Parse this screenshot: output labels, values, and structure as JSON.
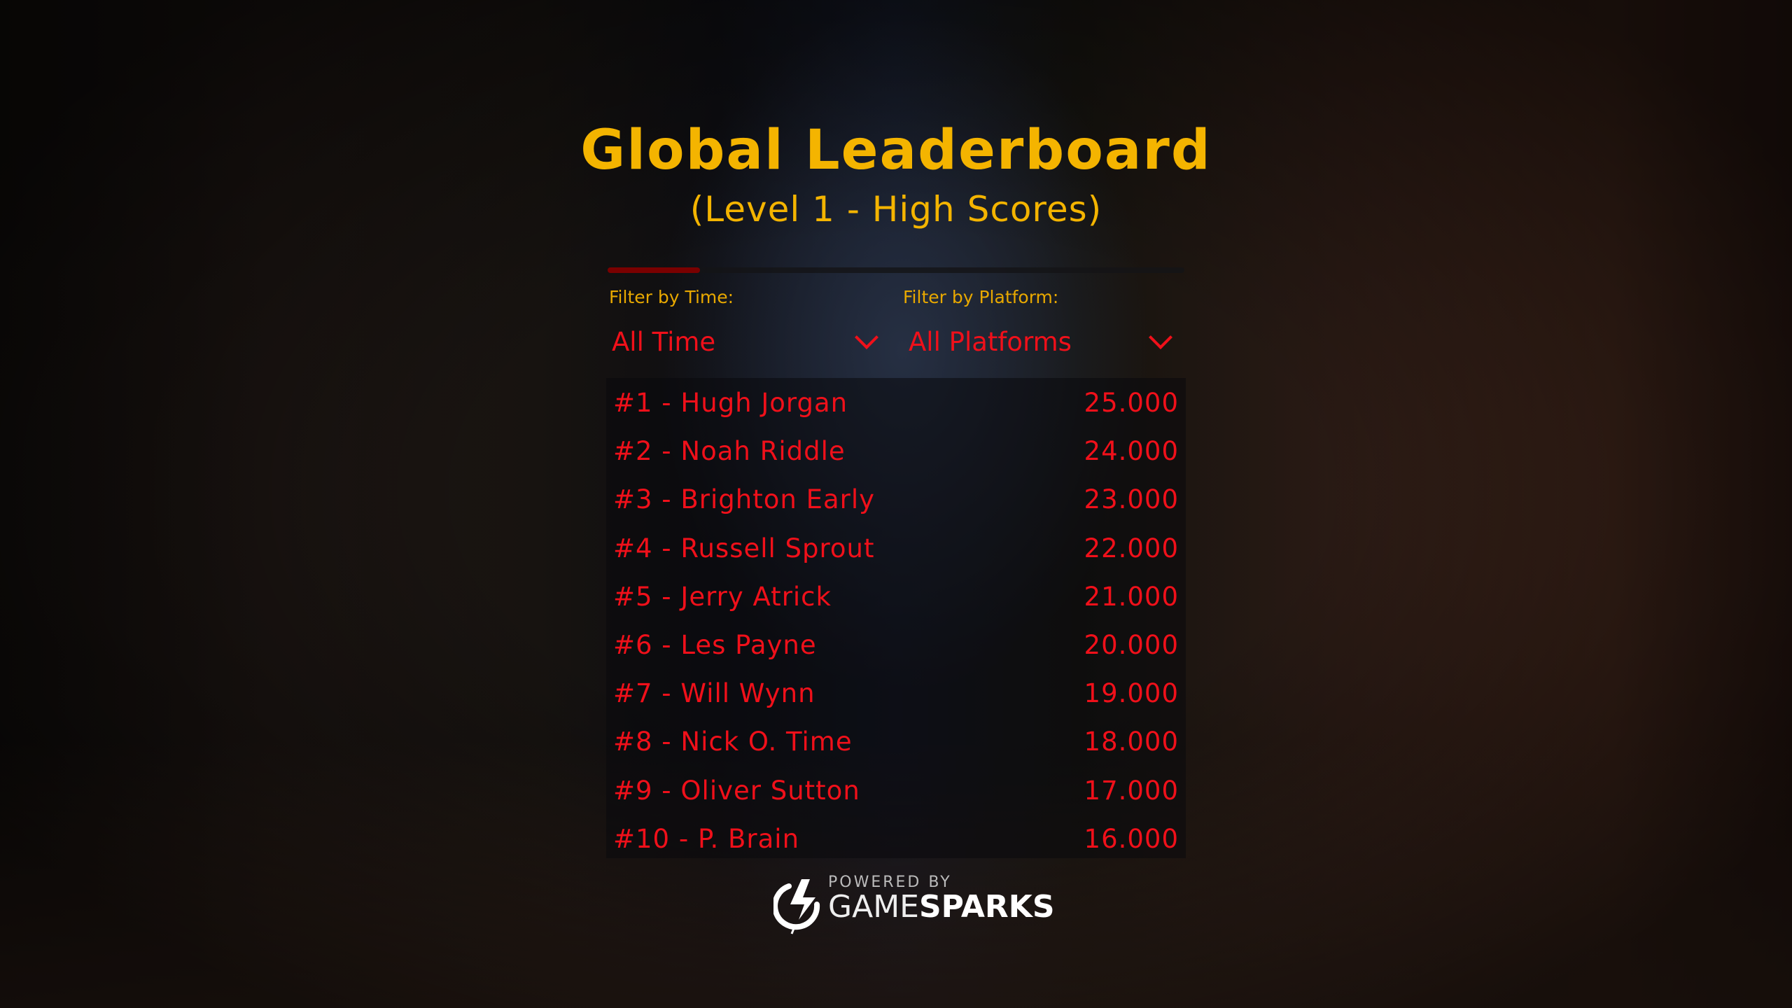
{
  "header": {
    "title": "Global Leaderboard",
    "subtitle": "(Level 1 - High Scores)"
  },
  "progress": {
    "fraction": 0.16,
    "color": "#7a0000"
  },
  "filters": {
    "time": {
      "label": "Filter by Time:",
      "value": "All Time"
    },
    "platform": {
      "label": "Filter by Platform:",
      "value": "All Platforms"
    }
  },
  "leaderboard": [
    {
      "entry": "#1 - Hugh Jorgan",
      "score": "25.000"
    },
    {
      "entry": "#2 - Noah Riddle",
      "score": "24.000"
    },
    {
      "entry": "#3 - Brighton Early",
      "score": "23.000"
    },
    {
      "entry": "#4 - Russell Sprout",
      "score": "22.000"
    },
    {
      "entry": "#5 - Jerry Atrick",
      "score": "21.000"
    },
    {
      "entry": "#6 - Les Payne",
      "score": "20.000"
    },
    {
      "entry": "#7 - Will Wynn",
      "score": "19.000"
    },
    {
      "entry": "#8 - Nick O. Time",
      "score": "18.000"
    },
    {
      "entry": "#9 - Oliver Sutton",
      "score": "17.000"
    },
    {
      "entry": "#10 - P. Brain",
      "score": "16.000"
    }
  ],
  "footer": {
    "powered_by": "POWERED BY",
    "brand_light": "GAME",
    "brand_bold": "SPARKS"
  },
  "colors": {
    "title": "#f4b400",
    "entries": "#f0101a"
  }
}
